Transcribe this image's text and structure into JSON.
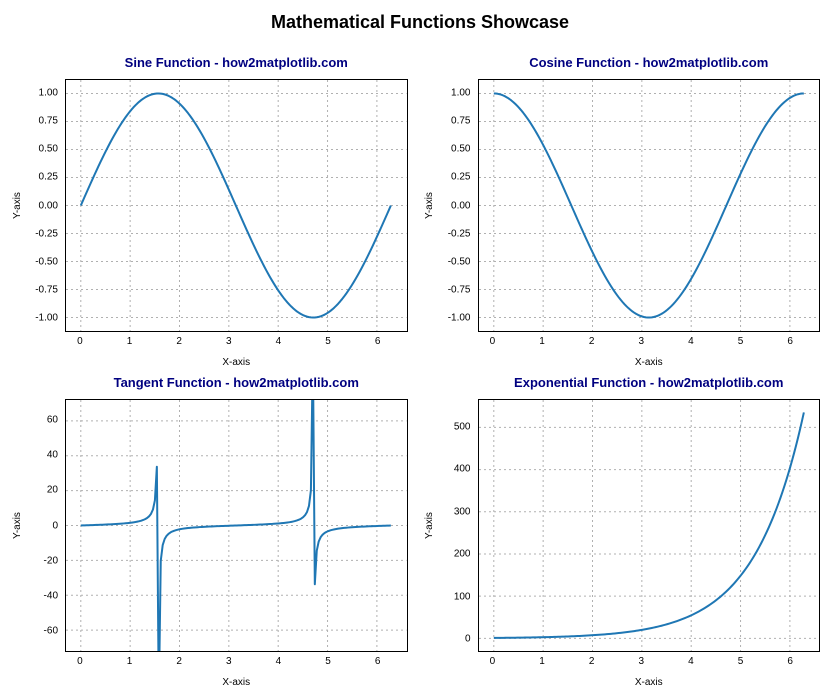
{
  "suptitle": "Mathematical Functions Showcase",
  "suptitle_fontsize": 18,
  "suptitle_color": "#000000",
  "background_color": "#ffffff",
  "spine_color": "#000000",
  "grid_color": "#b0b0b0",
  "grid_dash": "2,3",
  "line_color": "#1f77b4",
  "line_width": 2,
  "tick_fontsize": 10,
  "label_fontsize": 10,
  "subtitle_fontsize": 13,
  "subtitle_color": "#000080",
  "xlabel": "X-axis",
  "ylabel": "Y-axis",
  "x_domain": [
    0,
    6.283185307
  ],
  "x_samples": 160,
  "subplots": [
    {
      "id": "sine",
      "title": "Sine Function - how2matplotlib.com",
      "func": "sin",
      "xlim": [
        -0.3,
        6.6
      ],
      "ylim": [
        -1.12,
        1.12
      ],
      "xticks": [
        0,
        1,
        2,
        3,
        4,
        5,
        6
      ],
      "xticklabels": [
        "0",
        "1",
        "2",
        "3",
        "4",
        "5",
        "6"
      ],
      "yticks": [
        -1.0,
        -0.75,
        -0.5,
        -0.25,
        0.0,
        0.25,
        0.5,
        0.75,
        1.0
      ],
      "yticklabels": [
        "-1.00",
        "-0.75",
        "-0.50",
        "-0.25",
        "0.00",
        "0.25",
        "0.50",
        "0.75",
        "1.00"
      ]
    },
    {
      "id": "cosine",
      "title": "Cosine Function - how2matplotlib.com",
      "func": "cos",
      "xlim": [
        -0.3,
        6.6
      ],
      "ylim": [
        -1.12,
        1.12
      ],
      "xticks": [
        0,
        1,
        2,
        3,
        4,
        5,
        6
      ],
      "xticklabels": [
        "0",
        "1",
        "2",
        "3",
        "4",
        "5",
        "6"
      ],
      "yticks": [
        -1.0,
        -0.75,
        -0.5,
        -0.25,
        0.0,
        0.25,
        0.5,
        0.75,
        1.0
      ],
      "yticklabels": [
        "-1.00",
        "-0.75",
        "-0.50",
        "-0.25",
        "0.00",
        "0.25",
        "0.50",
        "0.75",
        "1.00"
      ]
    },
    {
      "id": "tangent",
      "title": "Tangent Function - how2matplotlib.com",
      "func": "tan",
      "xlim": [
        -0.3,
        6.6
      ],
      "ylim": [
        -72,
        72
      ],
      "xticks": [
        0,
        1,
        2,
        3,
        4,
        5,
        6
      ],
      "xticklabels": [
        "0",
        "1",
        "2",
        "3",
        "4",
        "5",
        "6"
      ],
      "yticks": [
        -60,
        -40,
        -20,
        0,
        20,
        40,
        60
      ],
      "yticklabels": [
        "-60",
        "-40",
        "-20",
        "0",
        "20",
        "40",
        "60"
      ]
    },
    {
      "id": "exp",
      "title": "Exponential Function - how2matplotlib.com",
      "func": "exp",
      "xlim": [
        -0.3,
        6.6
      ],
      "ylim": [
        -30,
        565
      ],
      "xticks": [
        0,
        1,
        2,
        3,
        4,
        5,
        6
      ],
      "xticklabels": [
        "0",
        "1",
        "2",
        "3",
        "4",
        "5",
        "6"
      ],
      "yticks": [
        0,
        100,
        200,
        300,
        400,
        500
      ],
      "yticklabels": [
        "0",
        "100",
        "200",
        "300",
        "400",
        "500"
      ]
    }
  ]
}
